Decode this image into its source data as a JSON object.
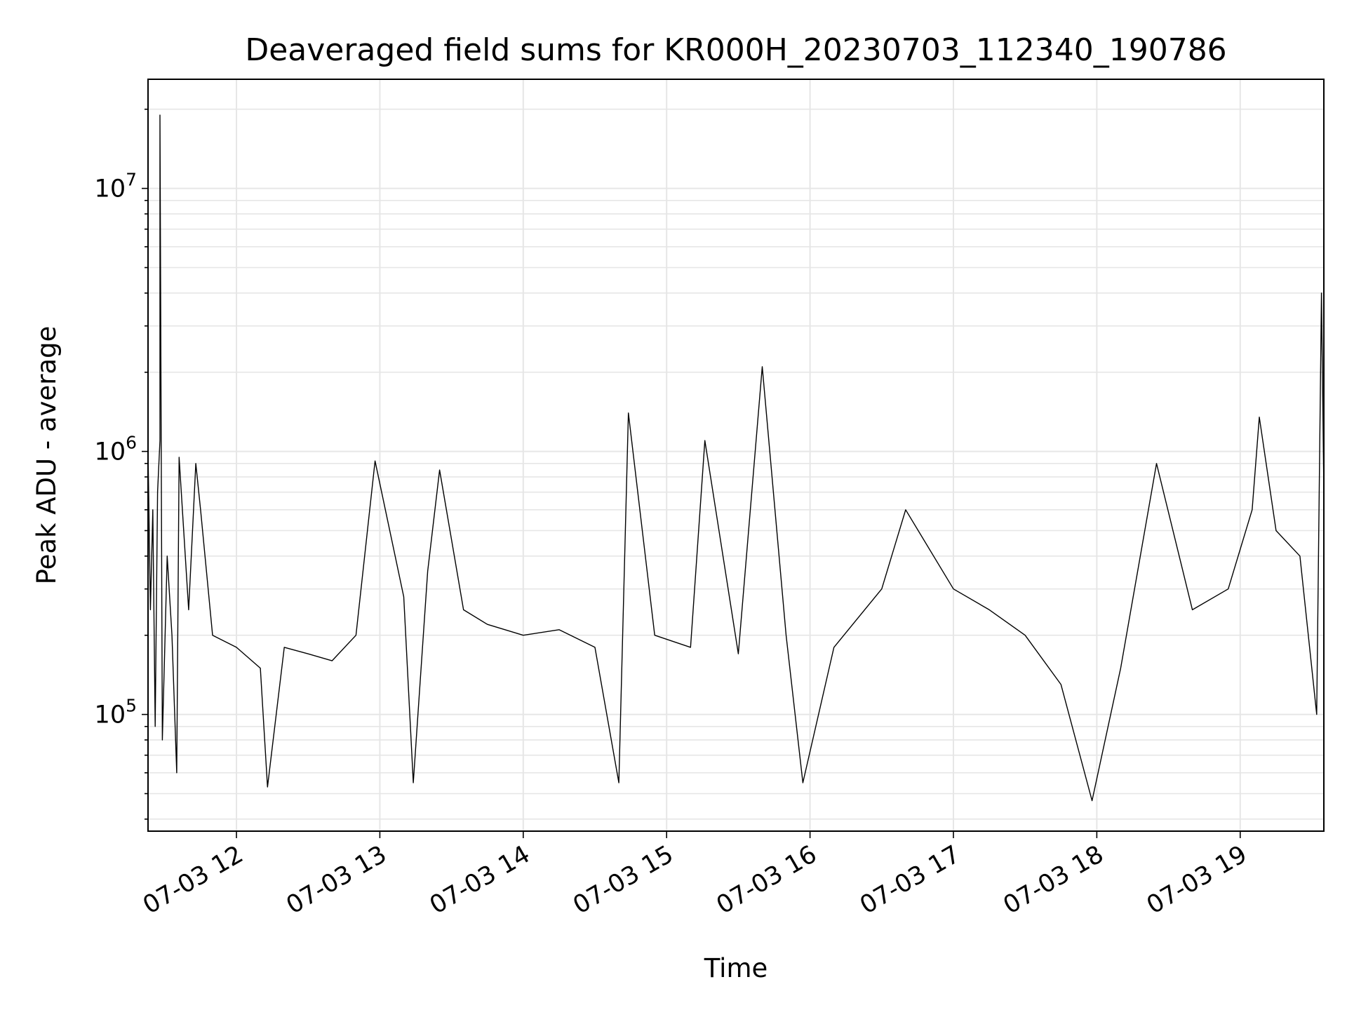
{
  "chart_data": {
    "type": "line",
    "title": "Deaveraged field sums for KR000H_20230703_112340_190786",
    "xlabel": "Time",
    "ylabel": "Peak ADU - average",
    "y_scale": "log",
    "xlim": [
      "2023-07-03 11:23",
      "2023-07-03 19:35"
    ],
    "ylim": [
      36000,
      26000000
    ],
    "grid": true,
    "line_color": "#000000",
    "x_ticks": [
      "07-03 12",
      "07-03 13",
      "07-03 14",
      "07-03 15",
      "07-03 16",
      "07-03 17",
      "07-03 18",
      "07-03 19"
    ],
    "y_ticks": [
      {
        "base": "10",
        "exp": "5",
        "value": 100000
      },
      {
        "base": "10",
        "exp": "6",
        "value": 1000000
      },
      {
        "base": "10",
        "exp": "7",
        "value": 10000000
      }
    ],
    "series": [
      {
        "points": [
          [
            "2023-07-03 11:23",
            1000000
          ],
          [
            "2023-07-03 11:24",
            250000
          ],
          [
            "2023-07-03 11:25",
            600000
          ],
          [
            "2023-07-03 11:26",
            90000
          ],
          [
            "2023-07-03 11:27",
            700000
          ],
          [
            "2023-07-03 11:28",
            1100000
          ],
          [
            "2023-07-03 11:28",
            19000000
          ],
          [
            "2023-07-03 11:29",
            80000
          ],
          [
            "2023-07-03 11:31",
            400000
          ],
          [
            "2023-07-03 11:33",
            200000
          ],
          [
            "2023-07-03 11:35",
            60000
          ],
          [
            "2023-07-03 11:36",
            950000
          ],
          [
            "2023-07-03 11:40",
            250000
          ],
          [
            "2023-07-03 11:43",
            900000
          ],
          [
            "2023-07-03 11:45",
            600000
          ],
          [
            "2023-07-03 11:50",
            200000
          ],
          [
            "2023-07-03 12:00",
            180000
          ],
          [
            "2023-07-03 12:10",
            150000
          ],
          [
            "2023-07-03 12:13",
            53000
          ],
          [
            "2023-07-03 12:20",
            180000
          ],
          [
            "2023-07-03 12:30",
            170000
          ],
          [
            "2023-07-03 12:40",
            160000
          ],
          [
            "2023-07-03 12:50",
            200000
          ],
          [
            "2023-07-03 12:58",
            920000
          ],
          [
            "2023-07-03 13:10",
            280000
          ],
          [
            "2023-07-03 13:14",
            55000
          ],
          [
            "2023-07-03 13:20",
            350000
          ],
          [
            "2023-07-03 13:25",
            850000
          ],
          [
            "2023-07-03 13:35",
            250000
          ],
          [
            "2023-07-03 13:45",
            220000
          ],
          [
            "2023-07-03 14:00",
            200000
          ],
          [
            "2023-07-03 14:15",
            210000
          ],
          [
            "2023-07-03 14:30",
            180000
          ],
          [
            "2023-07-03 14:40",
            55000
          ],
          [
            "2023-07-03 14:44",
            1400000
          ],
          [
            "2023-07-03 14:55",
            200000
          ],
          [
            "2023-07-03 15:10",
            180000
          ],
          [
            "2023-07-03 15:16",
            1100000
          ],
          [
            "2023-07-03 15:30",
            170000
          ],
          [
            "2023-07-03 15:40",
            2100000
          ],
          [
            "2023-07-03 15:50",
            200000
          ],
          [
            "2023-07-03 15:57",
            55000
          ],
          [
            "2023-07-03 16:10",
            180000
          ],
          [
            "2023-07-03 16:30",
            300000
          ],
          [
            "2023-07-03 16:40",
            600000
          ],
          [
            "2023-07-03 17:00",
            300000
          ],
          [
            "2023-07-03 17:15",
            250000
          ],
          [
            "2023-07-03 17:30",
            200000
          ],
          [
            "2023-07-03 17:45",
            130000
          ],
          [
            "2023-07-03 17:58",
            47000
          ],
          [
            "2023-07-03 18:10",
            150000
          ],
          [
            "2023-07-03 18:25",
            900000
          ],
          [
            "2023-07-03 18:40",
            250000
          ],
          [
            "2023-07-03 18:55",
            300000
          ],
          [
            "2023-07-03 19:05",
            600000
          ],
          [
            "2023-07-03 19:08",
            1350000
          ],
          [
            "2023-07-03 19:15",
            500000
          ],
          [
            "2023-07-03 19:25",
            400000
          ],
          [
            "2023-07-03 19:32",
            100000
          ],
          [
            "2023-07-03 19:34",
            4000000
          ],
          [
            "2023-07-03 19:35",
            700000
          ]
        ]
      }
    ]
  }
}
